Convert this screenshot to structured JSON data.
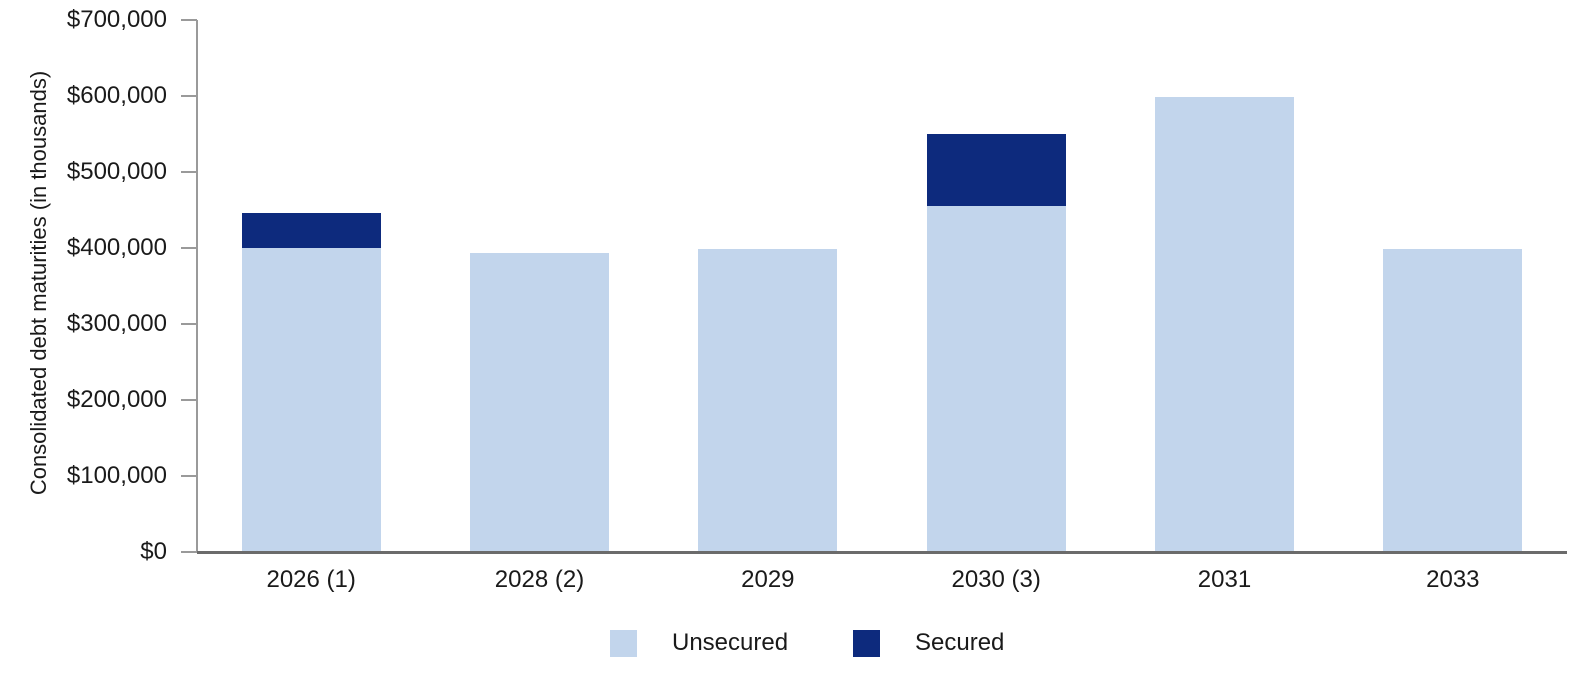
{
  "page": {
    "background_color": "#ffffff",
    "axis_color": "#9a9a9a",
    "baseline_color": "#6b6b6b",
    "text_color": "#1a1a1a"
  },
  "chart_data": {
    "type": "bar",
    "stacked": true,
    "title": "",
    "xlabel": "",
    "ylabel": "Consolidated debt maturities (in thousands)",
    "categories": [
      "2026 (1)",
      "2028 (2)",
      "2029",
      "2030 (3)",
      "2031",
      "2033"
    ],
    "series": [
      {
        "name": "Unsecured",
        "color": "#c2d5ec",
        "values": [
          400000,
          393000,
          399000,
          455000,
          599000,
          399000
        ]
      },
      {
        "name": "Secured",
        "color": "#0d2a7d",
        "values": [
          46000,
          0,
          0,
          95000,
          0,
          0
        ]
      }
    ],
    "totals": [
      446000,
      393000,
      399000,
      550000,
      599000,
      399000
    ],
    "ylim": [
      0,
      700000
    ],
    "y_tick_interval": 100000,
    "y_ticks": [
      "$0",
      "$100,000",
      "$200,000",
      "$300,000",
      "$400,000",
      "$500,000",
      "$600,000",
      "$700,000"
    ],
    "grid": false,
    "legend_position": "bottom"
  }
}
